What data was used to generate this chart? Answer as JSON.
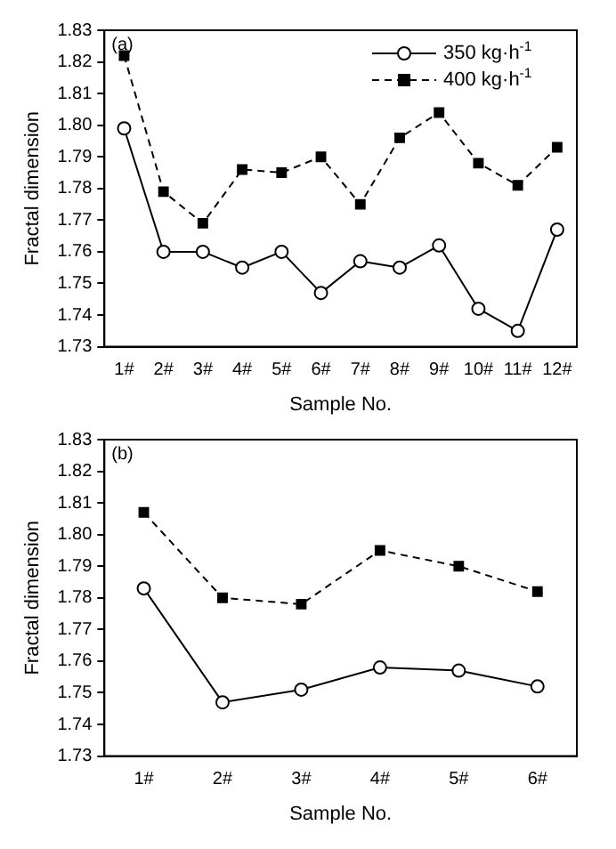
{
  "chart_data": [
    {
      "type": "line",
      "annotations": [
        "(a)"
      ],
      "xlabel": "Sample No.",
      "ylabel": "Fractal dimension",
      "categories": [
        "1#",
        "2#",
        "3#",
        "4#",
        "5#",
        "6#",
        "7#",
        "8#",
        "9#",
        "10#",
        "11#",
        "12#"
      ],
      "series": [
        {
          "name": "350 kg·h$^{-1}$",
          "color": "#000000",
          "marker": "circle",
          "line_style": "solid",
          "values": [
            1.799,
            1.76,
            1.76,
            1.755,
            1.76,
            1.747,
            1.757,
            1.755,
            1.762,
            1.742,
            1.735,
            1.767
          ]
        },
        {
          "name": "400 kg·h$^{-1}$",
          "color": "#000000",
          "marker": "square",
          "line_style": "dashed",
          "values": [
            1.822,
            1.779,
            1.769,
            1.786,
            1.785,
            1.79,
            1.775,
            1.796,
            1.804,
            1.788,
            1.781,
            1.793
          ]
        }
      ],
      "ylim": [
        1.73,
        1.83
      ],
      "yticks": [
        1.73,
        1.74,
        1.75,
        1.76,
        1.77,
        1.78,
        1.79,
        {
          "value": 1.8,
          "label": "1.80"
        },
        1.81,
        1.82,
        1.83
      ],
      "grid": false,
      "legend": "top right"
    },
    {
      "type": "line",
      "annotations": [
        "(b)"
      ],
      "xlabel": "Sample No.",
      "ylabel": "Fractal dimension",
      "categories": [
        "1#",
        "2#",
        "3#",
        "4#",
        "5#",
        "6#"
      ],
      "series": [
        {
          "color": "#000000",
          "marker": "circle",
          "line_style": "solid",
          "values": [
            1.783,
            1.747,
            1.751,
            1.758,
            1.757,
            1.752
          ]
        },
        {
          "color": "#000000",
          "marker": "square",
          "line_style": "dashed",
          "values": [
            1.807,
            1.78,
            1.778,
            1.795,
            1.79,
            1.782
          ]
        }
      ],
      "ylim": [
        1.73,
        1.83
      ],
      "yticks": [
        1.73,
        1.74,
        1.75,
        1.76,
        1.77,
        1.78,
        1.79,
        {
          "value": 1.8,
          "label": "1.80"
        },
        1.81,
        1.82,
        1.83
      ],
      "grid": false
    }
  ]
}
